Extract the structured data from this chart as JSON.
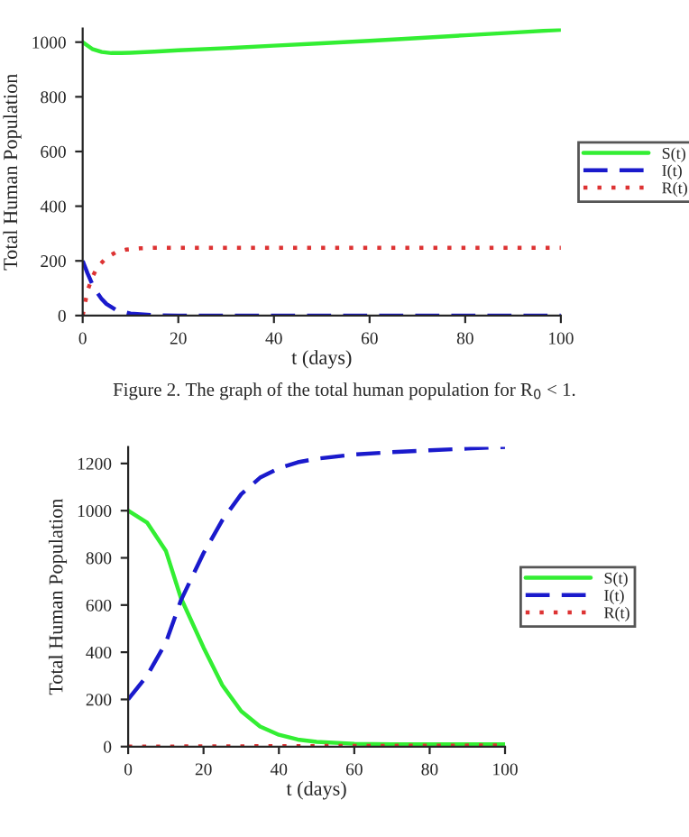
{
  "chart_data": [
    {
      "type": "line",
      "xlabel": "t (days)",
      "ylabel": "Total Human Population",
      "xlim": [
        0,
        100
      ],
      "ylim": [
        0,
        1050
      ],
      "xticks": [
        0,
        20,
        40,
        60,
        80,
        100
      ],
      "yticks": [
        0,
        200,
        400,
        600,
        800,
        1000
      ],
      "grid": false,
      "legend": "right",
      "annotations": [
        "Figure 2. The graph of the total human population for R$_{0}$ < 1."
      ],
      "series": [
        {
          "name": "S(t)",
          "color": "#33ee33",
          "line_style": "solid",
          "x": [
            0,
            2,
            4,
            6,
            8,
            10,
            15,
            20,
            30,
            40,
            50,
            60,
            70,
            80,
            90,
            100
          ],
          "values": [
            1000,
            975,
            964,
            960,
            960,
            961,
            965,
            970,
            978,
            987,
            996,
            1005,
            1015,
            1025,
            1035,
            1045
          ]
        },
        {
          "name": "I(t)",
          "color": "#1a1acc",
          "line_style": "dashed",
          "x": [
            0,
            1,
            2,
            3,
            4,
            5,
            7,
            10,
            15,
            20,
            40,
            60,
            80,
            100
          ],
          "values": [
            200,
            155,
            115,
            85,
            60,
            42,
            20,
            7,
            1,
            0,
            0,
            0,
            0,
            0
          ]
        },
        {
          "name": "R(t)",
          "color": "#dd3333",
          "line_style": "dotted",
          "x": [
            0,
            1,
            2,
            3,
            5,
            7,
            9,
            12,
            15,
            20,
            40,
            60,
            80,
            100
          ],
          "values": [
            0,
            90,
            140,
            175,
            212,
            232,
            241,
            246,
            248,
            248,
            248,
            248,
            248,
            248
          ]
        }
      ]
    },
    {
      "type": "line",
      "xlabel": "t (days)",
      "ylabel": "Total Human Population",
      "xlim": [
        0,
        100
      ],
      "ylim": [
        0,
        1270
      ],
      "xticks": [
        0,
        20,
        40,
        60,
        80,
        100
      ],
      "yticks": [
        0,
        200,
        400,
        600,
        800,
        1000,
        1200
      ],
      "grid": false,
      "legend": "right",
      "series": [
        {
          "name": "S(t)",
          "color": "#33ee33",
          "line_style": "solid",
          "x": [
            0,
            5,
            10,
            14,
            20,
            25,
            30,
            35,
            40,
            45,
            50,
            60,
            70,
            80,
            100
          ],
          "values": [
            1000,
            950,
            830,
            630,
            420,
            260,
            150,
            85,
            50,
            30,
            20,
            12,
            10,
            10,
            10
          ]
        },
        {
          "name": "I(t)",
          "color": "#1a1acc",
          "line_style": "dashed",
          "x": [
            0,
            5,
            10,
            14,
            20,
            25,
            30,
            35,
            40,
            45,
            50,
            60,
            70,
            80,
            90,
            100
          ],
          "values": [
            200,
            300,
            440,
            620,
            820,
            960,
            1070,
            1140,
            1180,
            1205,
            1220,
            1238,
            1248,
            1256,
            1263,
            1270
          ]
        },
        {
          "name": "R(t)",
          "color": "#dd3333",
          "line_style": "dotted",
          "x": [
            0,
            20,
            40,
            60,
            80,
            100
          ],
          "values": [
            0,
            1,
            2,
            3,
            4,
            5
          ]
        }
      ]
    }
  ]
}
